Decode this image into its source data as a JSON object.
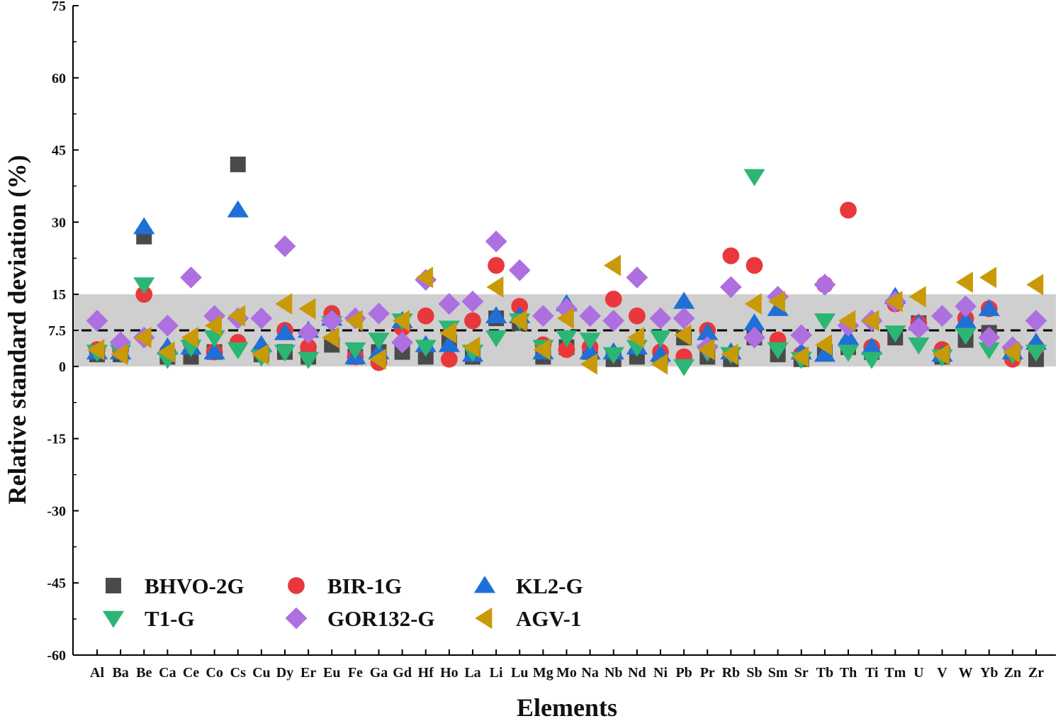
{
  "chart_data": {
    "type": "scatter",
    "xlabel": "Elements",
    "ylabel": "Relative standard deviation (%)",
    "ylim": [
      -60,
      75
    ],
    "yticks": [
      -60,
      -45,
      -30,
      -15,
      0,
      7.5,
      15,
      30,
      45,
      60,
      75
    ],
    "ytick_labels": [
      "-60",
      "-45",
      "-30",
      "-15",
      "0",
      "7.5",
      "15",
      "30",
      "45",
      "60",
      "75"
    ],
    "categories": [
      "Al",
      "Ba",
      "Be",
      "Ca",
      "Ce",
      "Co",
      "Cs",
      "Cu",
      "Dy",
      "Er",
      "Eu",
      "Fe",
      "Ga",
      "Gd",
      "Hf",
      "Ho",
      "La",
      "Li",
      "Lu",
      "Mg",
      "Mo",
      "Na",
      "Nb",
      "Nd",
      "Ni",
      "Pb",
      "Pr",
      "Rb",
      "Sb",
      "Sm",
      "Sr",
      "Tb",
      "Th",
      "Ti",
      "Tm",
      "U",
      "V",
      "W",
      "Yb",
      "Zn",
      "Zr"
    ],
    "reference_band": [
      0,
      15
    ],
    "reference_line": 7.5,
    "grid": false,
    "legend_position": "bottom-left",
    "series": [
      {
        "name": "BHVO-2G",
        "marker": "square",
        "color": "#4a4a4a",
        "values": [
          2.5,
          2.5,
          27,
          2,
          2,
          3,
          42,
          2.5,
          3,
          2,
          4.5,
          2,
          3,
          3,
          2,
          5,
          2,
          10,
          9,
          2,
          4,
          3,
          1.5,
          2,
          2,
          6,
          2,
          1.5,
          6,
          2.5,
          1.5,
          3,
          4,
          3,
          6,
          9,
          2,
          5.5,
          7,
          2.5,
          1.5
        ]
      },
      {
        "name": "BIR-1G",
        "marker": "circle",
        "color": "#e8383b",
        "values": [
          3.5,
          3.5,
          15,
          3,
          5,
          3,
          5,
          3,
          7.5,
          4,
          11,
          2,
          0.8,
          8,
          10.5,
          1.5,
          9.5,
          21,
          12.5,
          4.5,
          3.5,
          4,
          14,
          10.5,
          3,
          2,
          7.5,
          23,
          21,
          5.5,
          2.5,
          17,
          32.5,
          4,
          13,
          9,
          3.5,
          10,
          12,
          1.5,
          4
        ]
      },
      {
        "name": "KL2-G",
        "marker": "triangle-up",
        "color": "#1f6fd6",
        "values": [
          3,
          3,
          29,
          4,
          4,
          3,
          32.5,
          4.5,
          7,
          7.5,
          10,
          2,
          3,
          9.5,
          4.5,
          4.5,
          2.5,
          10.5,
          10.5,
          3,
          13,
          3,
          3,
          4,
          2.5,
          13.5,
          7,
          3,
          9,
          12,
          3,
          2.5,
          6,
          4,
          14.5,
          9,
          2.5,
          9.5,
          12,
          3,
          5
        ]
      },
      {
        "name": "T1-G",
        "marker": "triangle-down",
        "color": "#2bb673",
        "values": [
          3,
          3,
          17,
          1.5,
          4,
          6,
          3.5,
          2,
          3,
          1.5,
          9,
          3.5,
          5.5,
          9.5,
          4,
          8,
          3,
          6,
          9.5,
          4,
          6,
          5.5,
          2.5,
          4,
          6,
          0,
          3,
          2.5,
          39.5,
          3.5,
          1.5,
          9.5,
          3,
          1.5,
          7,
          4.5,
          2,
          6.5,
          3.5,
          2.5,
          3
        ]
      },
      {
        "name": "GOR132-G",
        "marker": "diamond",
        "color": "#ae6fe0",
        "values": [
          9.5,
          5,
          6,
          8.5,
          18.5,
          10.5,
          10,
          10,
          25,
          7,
          9.5,
          10,
          11,
          5,
          18,
          13,
          13.5,
          26,
          20,
          10.5,
          12,
          10.5,
          9.5,
          18.5,
          10,
          10,
          4,
          16.5,
          6,
          14.5,
          6.5,
          17,
          8.5,
          9.5,
          13.5,
          8,
          10.5,
          12.5,
          6,
          4,
          9.5
        ]
      },
      {
        "name": "AGV-1",
        "marker": "triangle-left",
        "color": "#c99a08",
        "values": [
          3.5,
          2.5,
          6,
          3,
          6,
          8.5,
          10.5,
          2.5,
          13,
          12,
          6,
          9.5,
          1.5,
          9.5,
          18.5,
          7,
          4,
          16.5,
          9.5,
          3.5,
          10,
          0.5,
          21,
          6,
          0.5,
          6.5,
          3.5,
          2.5,
          13,
          13.5,
          2,
          4.5,
          9.5,
          9.5,
          13.5,
          14.5,
          2.5,
          17.5,
          18.5,
          3,
          17
        ]
      }
    ]
  }
}
